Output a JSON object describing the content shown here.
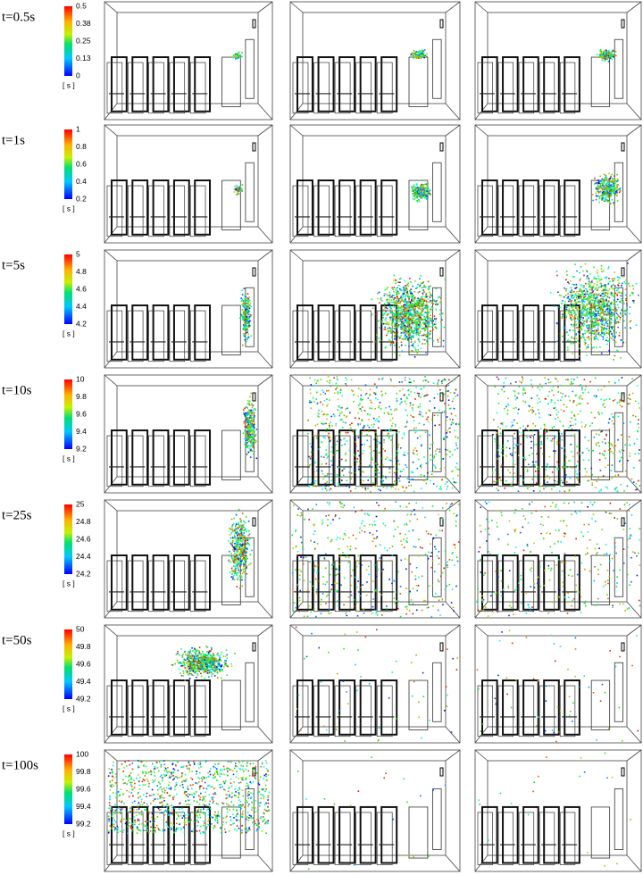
{
  "rows": [
    {
      "label": "t=0.5s",
      "colorbar": {
        "ticks": [
          0.5,
          0.38,
          0.25,
          0.13,
          0
        ],
        "unit": "[ s ]"
      }
    },
    {
      "label": "t=1s",
      "colorbar": {
        "ticks": [
          1,
          0.8,
          0.6,
          0.4,
          0.2
        ],
        "unit": "[ s ]"
      }
    },
    {
      "label": "t=5s",
      "colorbar": {
        "ticks": [
          5,
          4.8,
          4.6,
          4.4,
          4.2
        ],
        "unit": "[ s ]"
      }
    },
    {
      "label": "t=10s",
      "colorbar": {
        "ticks": [
          10,
          9.8,
          9.6,
          9.4,
          9.2
        ],
        "unit": "[ s ]"
      }
    },
    {
      "label": "t=25s",
      "colorbar": {
        "ticks": [
          25,
          24.8,
          24.6,
          24.4,
          24.2
        ],
        "unit": "[ s ]"
      }
    },
    {
      "label": "t=50s",
      "colorbar": {
        "ticks": [
          50,
          49.8,
          49.6,
          49.4,
          49.2
        ],
        "unit": "[ s ]"
      }
    },
    {
      "label": "t=100s",
      "colorbar": {
        "ticks": [
          100,
          99.8,
          99.6,
          99.4,
          99.2
        ],
        "unit": "[ s ]"
      }
    }
  ]
}
